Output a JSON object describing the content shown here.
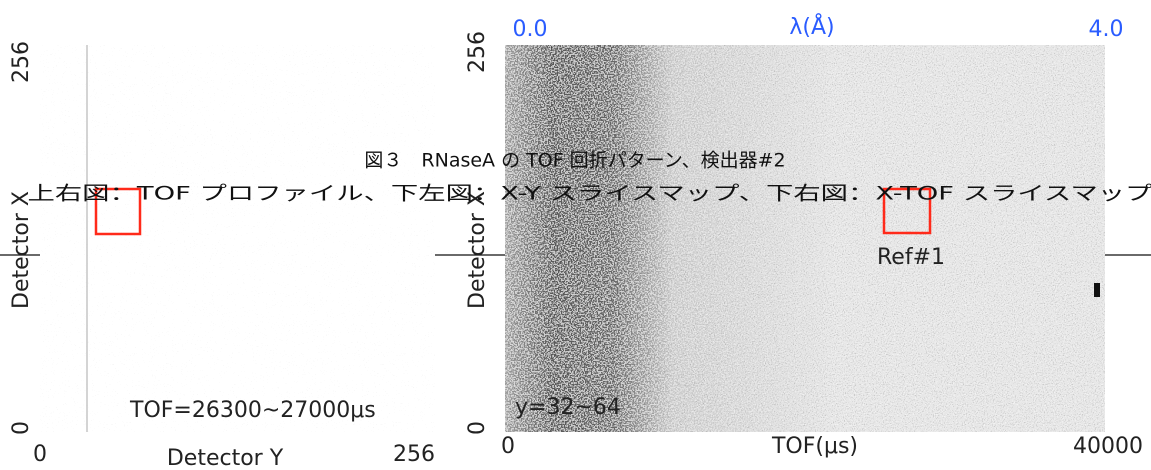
{
  "left_panel": {
    "y_axis": {
      "max": "256",
      "min": "0",
      "label": "Detector X"
    },
    "x_axis": {
      "min": "0",
      "label": "Detector Y",
      "max": "256"
    },
    "annotation": "TOF=26300~27000μs"
  },
  "right_panel": {
    "top_axis": {
      "min": "0.0",
      "label": "λ(Å)",
      "max": "4.0"
    },
    "y_axis": {
      "max": "256",
      "min": "0",
      "label": "Detector X"
    },
    "x_axis": {
      "min": "0",
      "label": "TOF(μs)",
      "max": "40000"
    },
    "annotation": "y=32~64",
    "marker": "Ref#1"
  },
  "caption": {
    "line1": "図３　RNaseA の TOF 回折パターン、検出器#2",
    "line2": "上右図：TOF プロファイル、下左図：X-Y スライスマップ、下右図：X-TOF スライスマップ"
  }
}
